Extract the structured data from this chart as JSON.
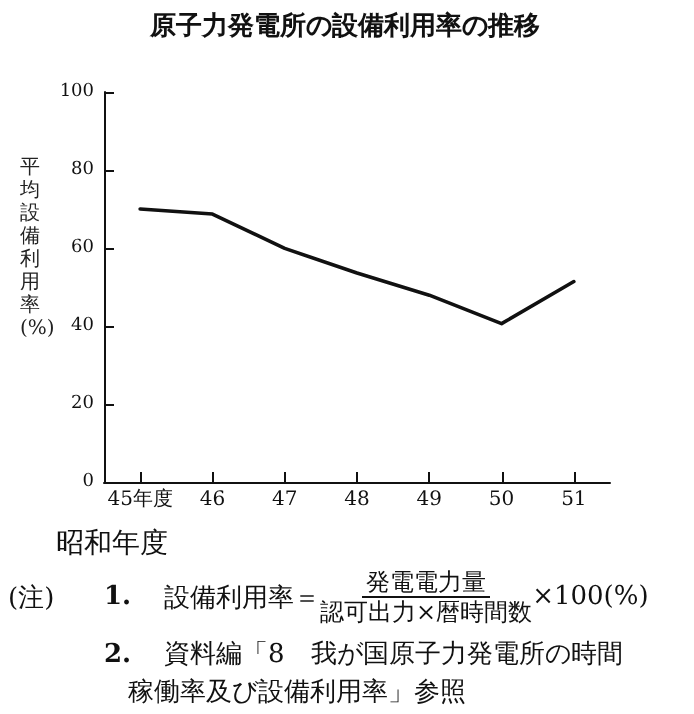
{
  "chart_data": {
    "type": "line",
    "title": "原子力発電所の設備利用率の推移",
    "xlabel": "昭和年度",
    "ylabel": "平均設備利用率(%)",
    "categories": [
      "45年度",
      "46",
      "47",
      "48",
      "49",
      "50",
      "51"
    ],
    "series": [
      {
        "color": "#111111",
        "values": [
          70.0,
          68.7,
          59.9,
          53.6,
          47.9,
          40.6,
          51.4
        ]
      }
    ],
    "ylim": [
      0,
      100
    ],
    "yticks": [
      0,
      20,
      40,
      60,
      80,
      100
    ],
    "grid": false,
    "marker": "none",
    "line_style": "solid",
    "annotations": [
      "(注)",
      "1.",
      "設備利用率＝",
      "発電電力量",
      "認可出力×暦時間数",
      "×100(%)",
      "2.",
      "資料編「8　我が国原子力発電所の時間",
      "稼働率及び設備利用率」参照"
    ]
  }
}
